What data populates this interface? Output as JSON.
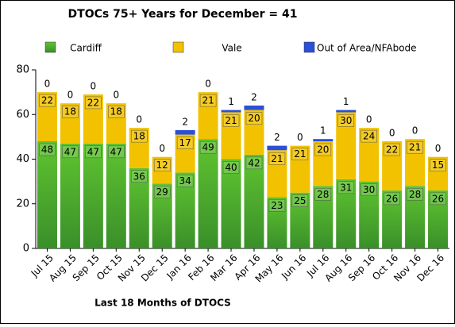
{
  "chart_data": {
    "type": "stacked_bar",
    "title": "DTOCs  75+ Years for December = 41",
    "x_label": "Last 18 Months of DTOCS",
    "categories": [
      "Jul 15",
      "Aug 15",
      "Sep 15",
      "Oct 15",
      "Nov 15",
      "Dec 15",
      "Jan 16",
      "Feb 16",
      "Mar 16",
      "Apr 16",
      "May 16",
      "Jun 16",
      "Jul 16",
      "Aug 16",
      "Sep 16",
      "Oct 16",
      "Nov 16",
      "Dec 16"
    ],
    "series": [
      {
        "name": "Cardiff",
        "color": "#4caf2a",
        "values": [
          48,
          47,
          47,
          47,
          36,
          29,
          34,
          49,
          40,
          42,
          23,
          25,
          28,
          31,
          30,
          26,
          28,
          26
        ]
      },
      {
        "name": "Vale",
        "color": "#f2c200",
        "values": [
          22,
          18,
          22,
          18,
          18,
          12,
          17,
          21,
          21,
          20,
          21,
          21,
          20,
          30,
          24,
          22,
          21,
          15
        ]
      },
      {
        "name": "Out of Area/NFAbode",
        "color": "#2a4fd8",
        "values": [
          0,
          0,
          0,
          0,
          0,
          0,
          2,
          0,
          1,
          2,
          2,
          0,
          1,
          1,
          0,
          0,
          0,
          0
        ]
      }
    ],
    "ylim": [
      0,
      80
    ],
    "yticks": [
      0,
      20,
      40,
      60,
      80
    ],
    "grid": false
  }
}
